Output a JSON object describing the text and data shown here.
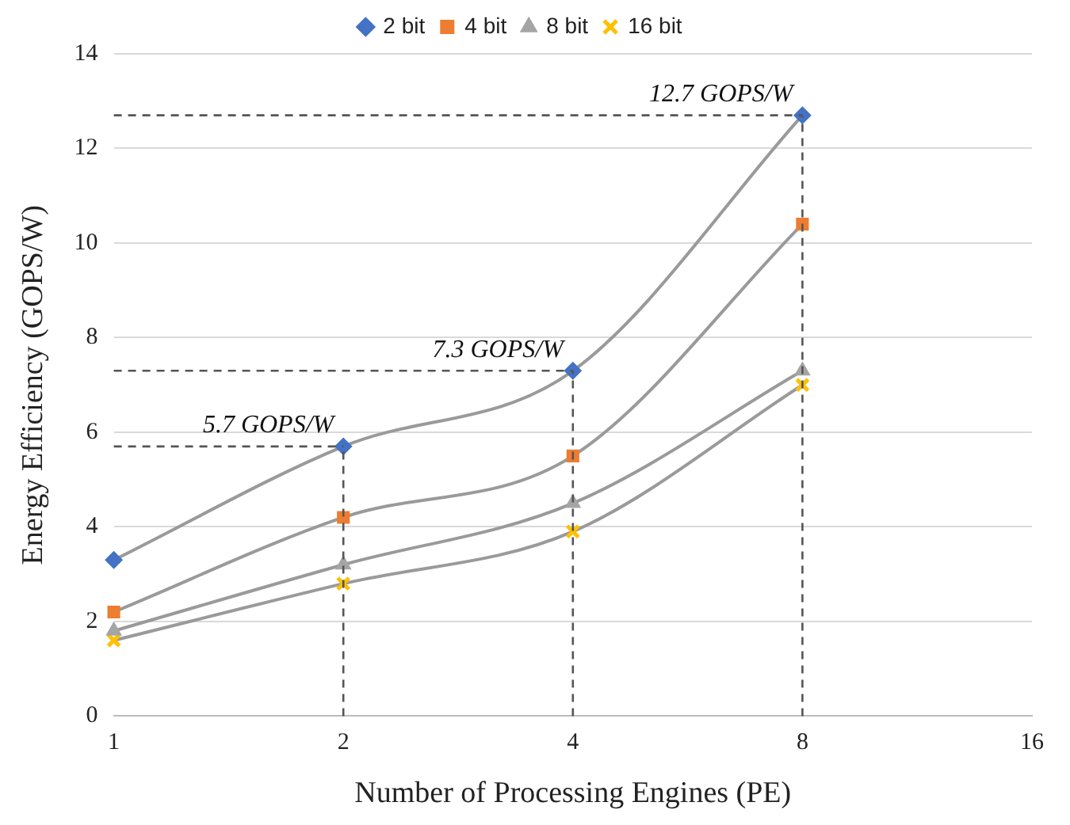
{
  "chart_data": {
    "type": "line",
    "xlabel": "Number of Processing Engines (PE)",
    "ylabel": "Energy Efficiency (GOPS/W)",
    "categories": [
      "1",
      "2",
      "4",
      "8",
      "16"
    ],
    "series": [
      {
        "name": "2 bit",
        "color": "#4472c4",
        "marker": "diamond",
        "values": [
          3.3,
          5.7,
          7.3,
          12.7,
          null
        ]
      },
      {
        "name": "4 bit",
        "color": "#ed7d31",
        "marker": "square",
        "values": [
          2.2,
          4.2,
          5.5,
          10.4,
          null
        ]
      },
      {
        "name": "8 bit",
        "color": "#a5a5a5",
        "marker": "triangle",
        "values": [
          1.8,
          3.2,
          4.5,
          7.3,
          null
        ]
      },
      {
        "name": "16 bit",
        "color": "#ffc000",
        "marker": "cross",
        "values": [
          1.6,
          2.8,
          3.9,
          7.0,
          null
        ]
      }
    ],
    "ref_lines": [
      {
        "axis": "y",
        "value": 5.7,
        "line_style": "dashed",
        "color": "#555555"
      },
      {
        "axis": "y",
        "value": 7.3,
        "line_style": "dashed",
        "color": "#555555"
      },
      {
        "axis": "y",
        "value": 12.7,
        "line_style": "dashed",
        "color": "#555555"
      },
      {
        "axis": "x",
        "value": "2",
        "line_style": "dashed",
        "color": "#555555"
      },
      {
        "axis": "x",
        "value": "4",
        "line_style": "dashed",
        "color": "#555555"
      },
      {
        "axis": "x",
        "value": "8",
        "line_style": "dashed",
        "color": "#555555"
      }
    ],
    "ylim": [
      0,
      14
    ],
    "yticks": [
      0,
      2,
      4,
      6,
      8,
      10,
      12,
      14
    ],
    "grid": "y",
    "legend": "top",
    "annotations": [
      {
        "text": "5.7 GOPS/W",
        "x": "2",
        "y": 5.7
      },
      {
        "text": "7.3 GOPS/W",
        "x": "4",
        "y": 7.3
      },
      {
        "text": "12.7 GOPS/W",
        "x": "8",
        "y": 12.7
      }
    ]
  }
}
